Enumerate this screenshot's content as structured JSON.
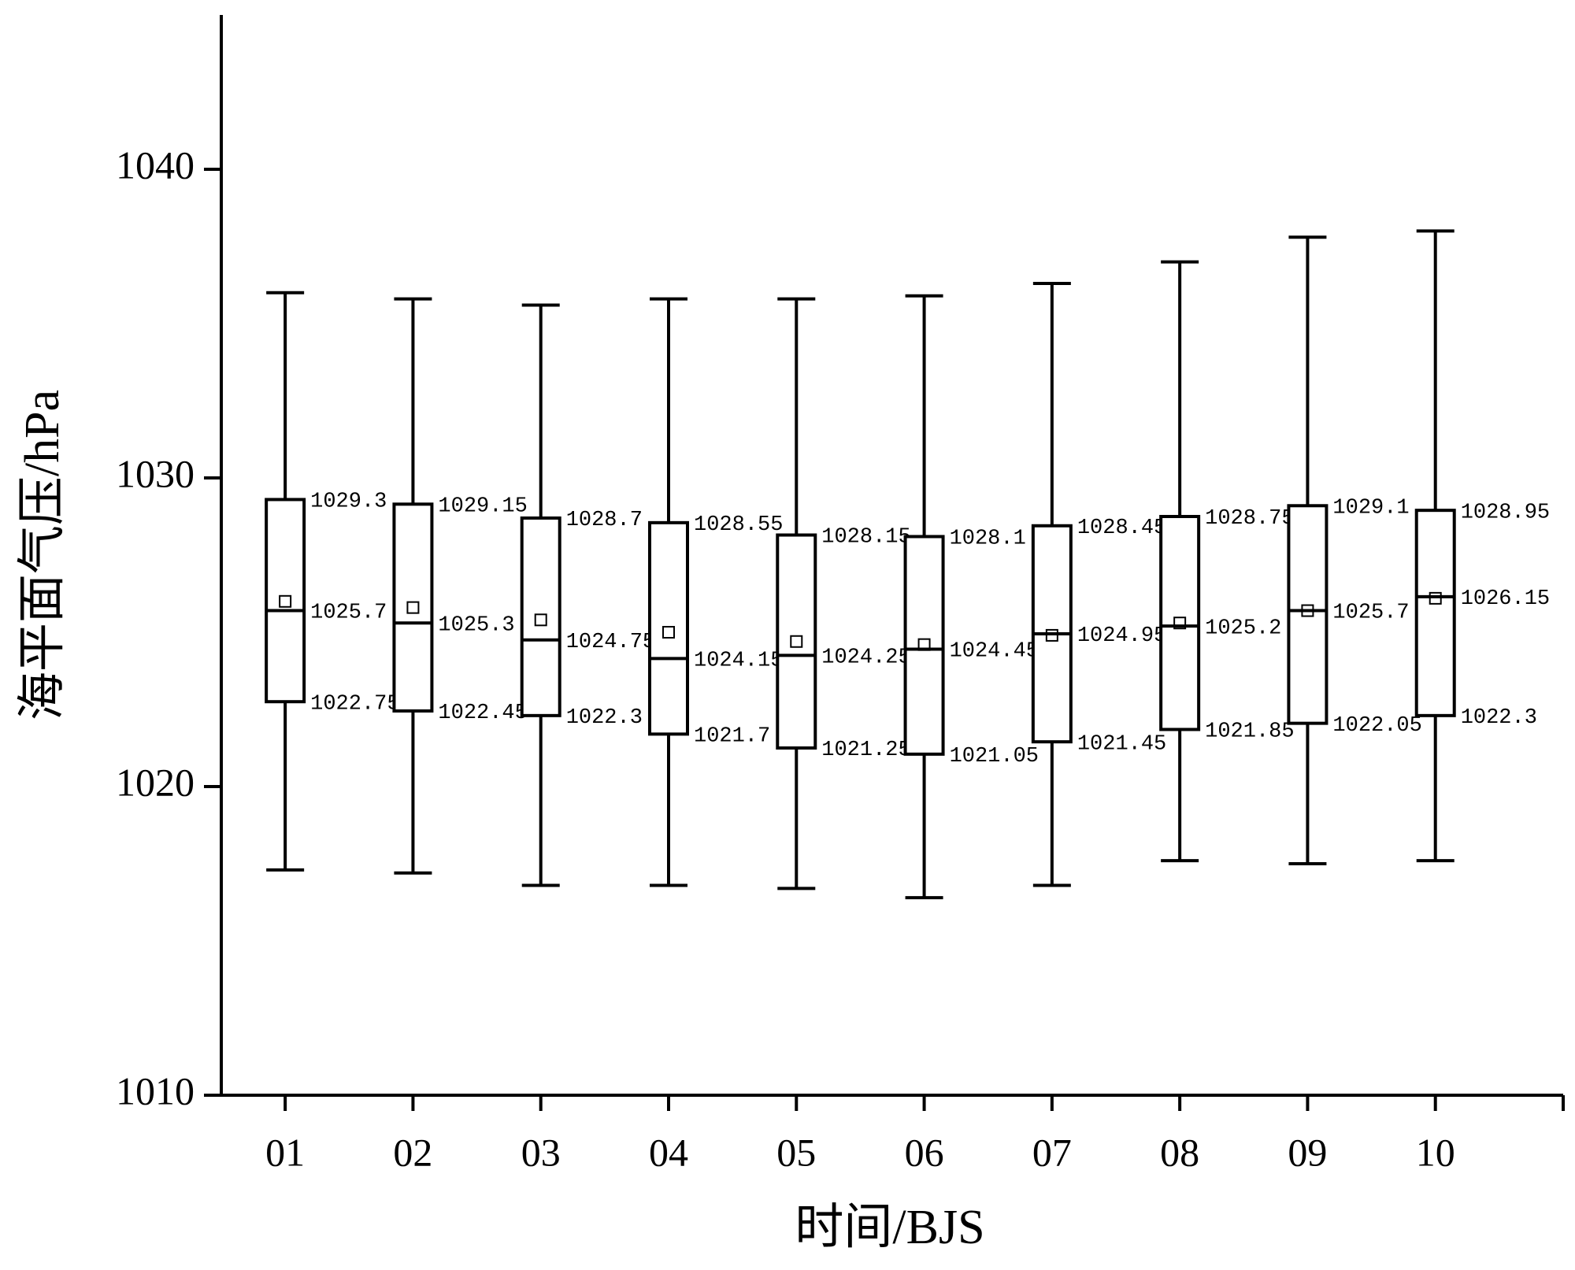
{
  "chart_data": {
    "type": "box",
    "x_label": "时间/BJS",
    "y_label": "海平面气压/hPa",
    "categories": [
      "01",
      "02",
      "03",
      "04",
      "05",
      "06",
      "07",
      "08",
      "09",
      "10"
    ],
    "whisker_high": [
      1036.0,
      1035.8,
      1035.6,
      1035.8,
      1035.8,
      1035.9,
      1036.3,
      1037.0,
      1037.8,
      1038.0
    ],
    "q3": [
      1029.3,
      1029.15,
      1028.7,
      1028.55,
      1028.15,
      1028.1,
      1028.45,
      1028.75,
      1029.1,
      1028.95
    ],
    "median": [
      1025.7,
      1025.3,
      1024.75,
      1024.15,
      1024.25,
      1024.45,
      1024.95,
      1025.2,
      1025.7,
      1026.15
    ],
    "q1": [
      1022.75,
      1022.45,
      1022.3,
      1021.7,
      1021.25,
      1021.05,
      1021.45,
      1021.85,
      1022.05,
      1022.3
    ],
    "whisker_low": [
      1017.3,
      1017.2,
      1016.8,
      1016.8,
      1016.7,
      1016.4,
      1016.8,
      1017.6,
      1017.5,
      1017.6
    ],
    "mean": [
      1026.0,
      1025.8,
      1025.4,
      1025.0,
      1024.7,
      1024.6,
      1024.9,
      1025.3,
      1025.7,
      1026.1
    ],
    "color": "#000000",
    "ylim": [
      1010,
      1045
    ],
    "yticks": [
      1010,
      1020,
      1030,
      1040
    ]
  }
}
